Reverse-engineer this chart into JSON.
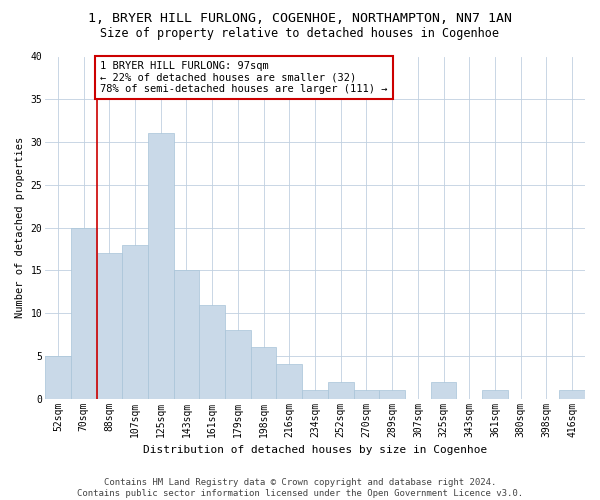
{
  "title": "1, BRYER HILL FURLONG, COGENHOE, NORTHAMPTON, NN7 1AN",
  "subtitle": "Size of property relative to detached houses in Cogenhoe",
  "xlabel": "Distribution of detached houses by size in Cogenhoe",
  "ylabel": "Number of detached properties",
  "bar_color": "#c9d9e8",
  "bar_edgecolor": "#a8c4d8",
  "background_color": "#ffffff",
  "grid_color": "#c0d0e0",
  "categories": [
    "52sqm",
    "70sqm",
    "88sqm",
    "107sqm",
    "125sqm",
    "143sqm",
    "161sqm",
    "179sqm",
    "198sqm",
    "216sqm",
    "234sqm",
    "252sqm",
    "270sqm",
    "289sqm",
    "307sqm",
    "325sqm",
    "343sqm",
    "361sqm",
    "380sqm",
    "398sqm",
    "416sqm"
  ],
  "values": [
    5,
    20,
    17,
    18,
    31,
    15,
    11,
    8,
    6,
    4,
    1,
    2,
    1,
    1,
    0,
    2,
    0,
    1,
    0,
    0,
    1
  ],
  "property_line_index": 2,
  "property_line_color": "#cc0000",
  "annotation_text": "1 BRYER HILL FURLONG: 97sqm\n← 22% of detached houses are smaller (32)\n78% of semi-detached houses are larger (111) →",
  "annotation_box_color": "#ffffff",
  "annotation_box_edgecolor": "#cc0000",
  "ylim": [
    0,
    40
  ],
  "yticks": [
    0,
    5,
    10,
    15,
    20,
    25,
    30,
    35,
    40
  ],
  "footer_line1": "Contains HM Land Registry data © Crown copyright and database right 2024.",
  "footer_line2": "Contains public sector information licensed under the Open Government Licence v3.0.",
  "title_fontsize": 9.5,
  "subtitle_fontsize": 8.5,
  "ylabel_fontsize": 7.5,
  "xlabel_fontsize": 8,
  "annotation_fontsize": 7.5,
  "tick_fontsize": 7,
  "footer_fontsize": 6.5
}
